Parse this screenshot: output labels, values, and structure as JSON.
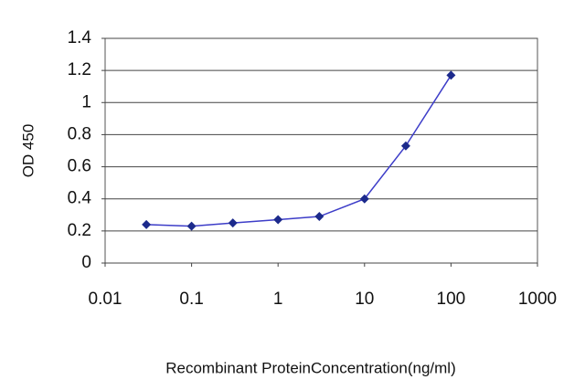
{
  "chart_data": {
    "type": "line",
    "x_label": "Recombinant ProteinConcentration(ng/ml)",
    "y_label": "OD 450",
    "x": [
      0.03,
      0.1,
      0.3,
      1,
      3,
      10,
      30,
      100
    ],
    "values": [
      0.24,
      0.23,
      0.25,
      0.27,
      0.29,
      0.4,
      0.73,
      1.17
    ],
    "color": "#3d3dc8",
    "marker_color": "#1c2a8c",
    "xscale": "log",
    "xlim": [
      0.01,
      1000
    ],
    "xticks": [
      0.01,
      0.1,
      1,
      10,
      100,
      1000
    ],
    "ylim": [
      0,
      1.4
    ],
    "yticks": [
      0,
      0.2,
      0.4,
      0.6,
      0.8,
      1,
      1.2,
      1.4
    ],
    "grid": true
  }
}
